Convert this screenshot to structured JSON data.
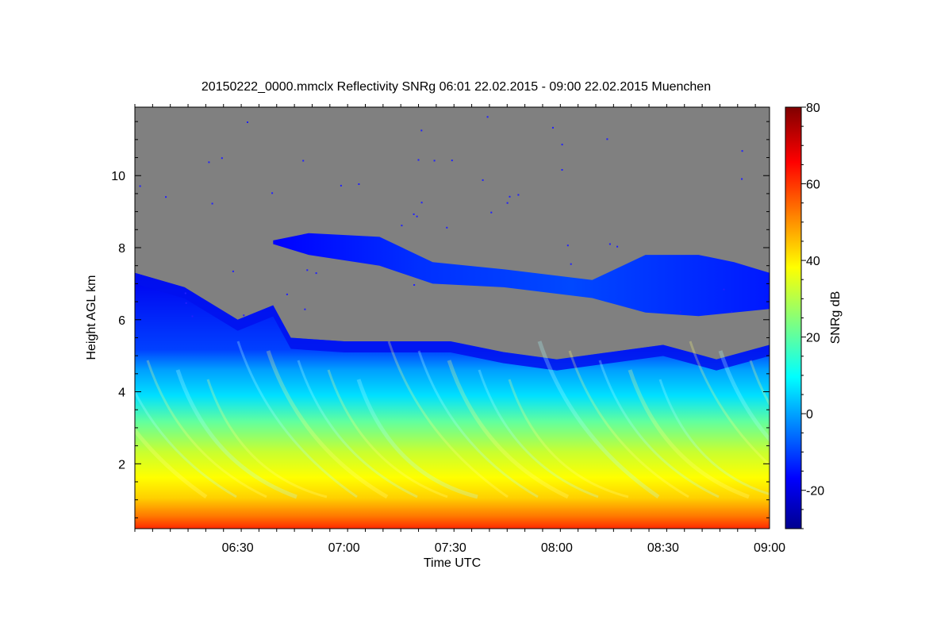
{
  "chart_data": {
    "type": "heatmap",
    "title": "20150222_0000.mmclx Reflectivity SNRg   06:01 22.02.2015 - 09:00 22.02.2015 Muenchen",
    "xlabel": "Time UTC",
    "ylabel": "Height AGL km",
    "colorbar_label": "SNRg dB",
    "x_range": [
      "06:01",
      "09:00"
    ],
    "x_ticks": [
      "06:30",
      "07:00",
      "07:30",
      "08:00",
      "08:30",
      "09:00"
    ],
    "y_range_km": [
      0.2,
      11.9
    ],
    "y_ticks": [
      2,
      4,
      6,
      8,
      10
    ],
    "colorbar_range_db": [
      -30,
      80
    ],
    "colorbar_ticks": [
      -20,
      0,
      20,
      40,
      60,
      80
    ],
    "no_signal_color": "#808080",
    "colormap": [
      "#00008f",
      "#0000ff",
      "#00ffff",
      "#ffff00",
      "#ff0000",
      "#800000"
    ],
    "lower_cloud_top_km": [
      {
        "t": "06:01",
        "h": 7.3
      },
      {
        "t": "06:15",
        "h": 6.9
      },
      {
        "t": "06:30",
        "h": 6.0
      },
      {
        "t": "06:40",
        "h": 6.4
      },
      {
        "t": "06:45",
        "h": 5.5
      },
      {
        "t": "07:00",
        "h": 5.4
      },
      {
        "t": "07:30",
        "h": 5.4
      },
      {
        "t": "07:45",
        "h": 5.1
      },
      {
        "t": "08:00",
        "h": 4.9
      },
      {
        "t": "08:15",
        "h": 5.1
      },
      {
        "t": "08:30",
        "h": 5.3
      },
      {
        "t": "08:45",
        "h": 4.9
      },
      {
        "t": "09:00",
        "h": 5.3
      }
    ],
    "upper_cloud_layer_km": [
      {
        "t": "06:40",
        "top": 8.2,
        "base": 8.1
      },
      {
        "t": "06:50",
        "top": 8.4,
        "base": 7.8
      },
      {
        "t": "07:10",
        "top": 8.3,
        "base": 7.5
      },
      {
        "t": "07:25",
        "top": 7.6,
        "base": 7.0
      },
      {
        "t": "07:45",
        "top": 7.4,
        "base": 6.9
      },
      {
        "t": "08:10",
        "top": 7.1,
        "base": 6.6
      },
      {
        "t": "08:25",
        "top": 7.8,
        "base": 6.2
      },
      {
        "t": "08:40",
        "top": 7.8,
        "base": 6.1
      },
      {
        "t": "08:50",
        "top": 7.6,
        "base": 6.2
      },
      {
        "t": "09:00",
        "top": 7.3,
        "base": 6.3
      }
    ]
  }
}
